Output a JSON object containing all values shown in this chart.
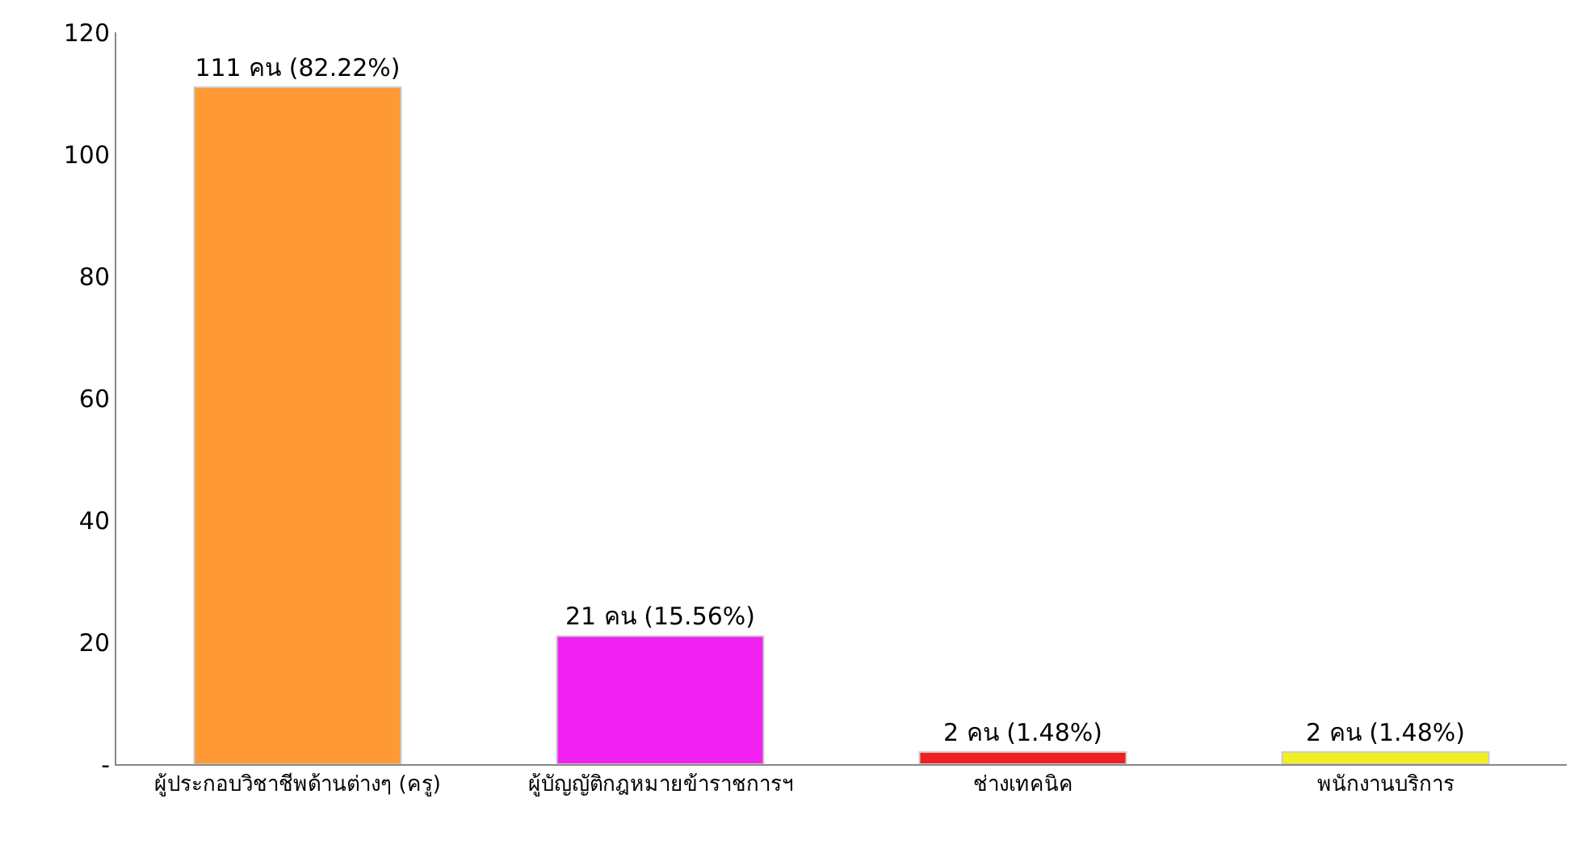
{
  "chart_data": {
    "type": "bar",
    "categories": [
      "ผู้ประกอบวิชาชีพด้านต่างๆ (ครู)",
      "ผู้บัญญัติกฎหมายข้าราชการฯ",
      "ช่างเทคนิค",
      "พนักงานบริการ"
    ],
    "values": [
      111,
      21,
      2,
      2
    ],
    "colors": [
      "#ff9933",
      "#f020f0",
      "#ee2020",
      "#f0f020"
    ],
    "value_labels": [
      "111 คน (82.22%)",
      "21 คน (15.56%)",
      "2 คน (1.48%)",
      "2 คน (1.48%)"
    ],
    "ylim": [
      0,
      120
    ],
    "yticks": [
      {
        "value": 0,
        "label": "-"
      },
      20,
      40,
      60,
      80,
      100,
      120
    ],
    "grid": false
  }
}
